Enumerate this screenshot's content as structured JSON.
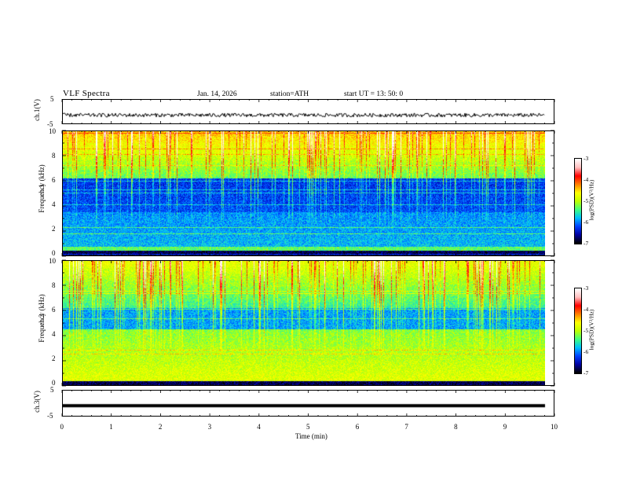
{
  "header": {
    "title": "VLF  Spectra",
    "date": "Jan. 14, 2026",
    "station": "station=ATH",
    "start": "start  UT  =   13: 50: 0"
  },
  "chart_data": [
    {
      "id": "ch1-waveform",
      "type": "line",
      "ylabel": "ch.1(V)",
      "yticks": [
        "5",
        "-5"
      ],
      "ylim": [
        -5,
        5
      ],
      "xlim": [
        0,
        10
      ],
      "description_level": -1.5,
      "series_color": "#000000"
    },
    {
      "id": "ch1-spectrogram",
      "type": "heatmap",
      "ylabel": "ch.1\nFrequency (kHz)",
      "ylabel_line1": "ch.1",
      "ylabel_line2": "Frequency (kHz)",
      "yticks": [
        "10",
        "8",
        "6",
        "4",
        "2",
        "0"
      ],
      "ylim": [
        0,
        10
      ],
      "xlim": [
        0,
        10
      ],
      "colorbar": {
        "label": "log(PSD)(V²/Hz)",
        "ticks": [
          "-3",
          "-4",
          "-5",
          "-6",
          "-7"
        ],
        "range": [
          -7,
          -3
        ]
      }
    },
    {
      "id": "ch2-spectrogram",
      "type": "heatmap",
      "ylabel_line1": "ch.2",
      "ylabel_line2": "Frequency (kHz)",
      "yticks": [
        "10",
        "8",
        "6",
        "4",
        "2",
        "0"
      ],
      "ylim": [
        0,
        10
      ],
      "xlim": [
        0,
        10
      ],
      "colorbar": {
        "label": "log(PSD)(V²/Hz)",
        "ticks": [
          "-3",
          "-4",
          "-5",
          "-6",
          "-7"
        ],
        "range": [
          -7,
          -3
        ]
      }
    },
    {
      "id": "ch3-waveform",
      "type": "line",
      "ylabel": "ch.3(V)",
      "yticks": [
        "5",
        "-5"
      ],
      "ylim": [
        -5,
        5
      ],
      "xlim": [
        0,
        10
      ],
      "level": -1.0,
      "series_color": "#000000"
    }
  ],
  "xaxis": {
    "label": "Time  (min)",
    "ticks": [
      "0",
      "1",
      "2",
      "3",
      "4",
      "5",
      "6",
      "7",
      "8",
      "9",
      "10"
    ]
  },
  "colors": {
    "colormap": [
      "#000000",
      "#0000a0",
      "#0040ff",
      "#00c0ff",
      "#40ff80",
      "#c0ff00",
      "#ffff00",
      "#ff8000",
      "#ff0000",
      "#ffc0c0",
      "#ffffff"
    ]
  }
}
